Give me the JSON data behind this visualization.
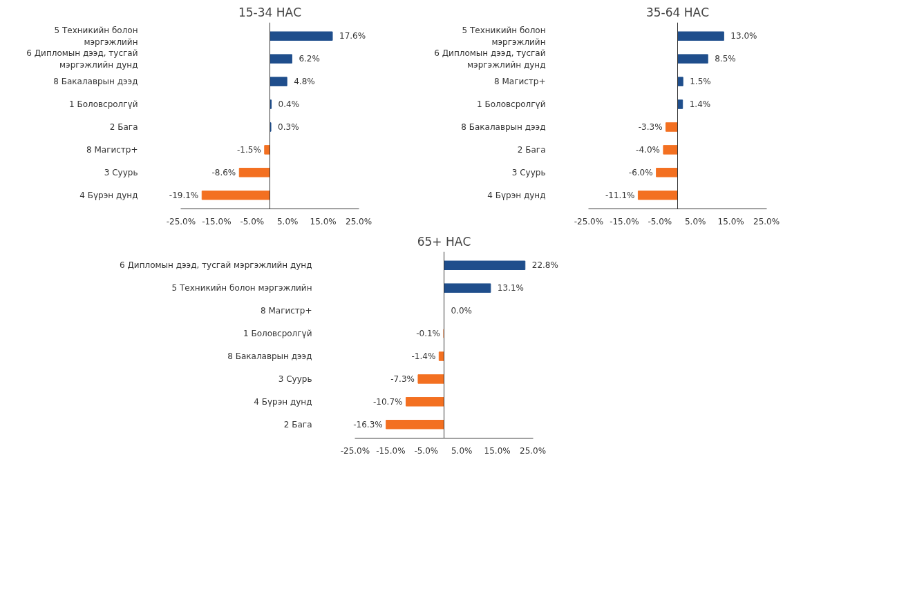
{
  "chart_data": [
    {
      "type": "bar",
      "orientation": "horizontal",
      "title": "15-34 НАС",
      "categories": [
        "5 Техникийн болон мэргэжлийн",
        "6 Дипломын дээд, тусгай мэргэжлийн дунд",
        "8 Бакалаврын дээд",
        "1 Боловсролгүй",
        "2 Бага",
        "8 Магистр+",
        "3 Суурь",
        "4 Бүрэн дунд"
      ],
      "values": [
        17.6,
        6.2,
        4.8,
        0.4,
        0.3,
        -1.5,
        -8.6,
        -19.1
      ],
      "colors": [
        "#1f4e8c",
        "#1f4e8c",
        "#1f4e8c",
        "#1f4e8c",
        "#1f4e8c",
        "#f37021",
        "#f37021",
        "#f37021"
      ],
      "value_labels": [
        "17.6%",
        "6.2%",
        "4.8%",
        "0.4%",
        "0.3%",
        "-1.5%",
        "-8.6%",
        "-19.1%"
      ],
      "xlim": [
        -25,
        25
      ],
      "xticks": [
        {
          "value": -25,
          "label": "-25.0%"
        },
        {
          "value": -15,
          "label": "-15.0%"
        },
        {
          "value": -5,
          "label": "-5.0%"
        },
        {
          "value": 5,
          "label": "5.0%"
        },
        {
          "value": 15,
          "label": "15.0%"
        },
        {
          "value": 25,
          "label": "25.0%"
        }
      ],
      "grid": false
    },
    {
      "type": "bar",
      "orientation": "horizontal",
      "title": "35-64 НАС",
      "categories": [
        "5 Техникийн болон мэргэжлийн",
        "6 Дипломын дээд, тусгай мэргэжлийн дунд",
        "8 Магистр+",
        "1 Боловсролгүй",
        "8 Бакалаврын дээд",
        "2 Бага",
        "3 Суурь",
        "4 Бүрэн дунд"
      ],
      "values": [
        13.0,
        8.5,
        1.5,
        1.4,
        -3.3,
        -4.0,
        -6.0,
        -11.1
      ],
      "colors": [
        "#1f4e8c",
        "#1f4e8c",
        "#1f4e8c",
        "#1f4e8c",
        "#f37021",
        "#f37021",
        "#f37021",
        "#f37021"
      ],
      "value_labels": [
        "13.0%",
        "8.5%",
        "1.5%",
        "1.4%",
        "-3.3%",
        "-4.0%",
        "-6.0%",
        "-11.1%"
      ],
      "xlim": [
        -25,
        25
      ],
      "xticks": [
        {
          "value": -25,
          "label": "-25.0%"
        },
        {
          "value": -15,
          "label": "-15.0%"
        },
        {
          "value": -5,
          "label": "-5.0%"
        },
        {
          "value": 5,
          "label": "5.0%"
        },
        {
          "value": 15,
          "label": "15.0%"
        },
        {
          "value": 25,
          "label": "25.0%"
        }
      ],
      "grid": false
    },
    {
      "type": "bar",
      "orientation": "horizontal",
      "title": "65+ НАС",
      "categories": [
        "6 Дипломын дээд, тусгай мэргэжлийн дунд",
        "5 Техникийн болон мэргэжлийн",
        "8 Магистр+",
        "1 Боловсролгүй",
        "8 Бакалаврын дээд",
        "3 Суурь",
        "4 Бүрэн дунд",
        "2 Бага"
      ],
      "values": [
        22.8,
        13.1,
        0.0,
        -0.1,
        -1.4,
        -7.3,
        -10.7,
        -16.3
      ],
      "colors": [
        "#1f4e8c",
        "#1f4e8c",
        "#1f4e8c",
        "#f37021",
        "#f37021",
        "#f37021",
        "#f37021",
        "#f37021"
      ],
      "value_labels": [
        "22.8%",
        "13.1%",
        "0.0%",
        "-0.1%",
        "-1.4%",
        "-7.3%",
        "-10.7%",
        "-16.3%"
      ],
      "xlim": [
        -25,
        25
      ],
      "xticks": [
        {
          "value": -25,
          "label": "-25.0%"
        },
        {
          "value": -15,
          "label": "-15.0%"
        },
        {
          "value": -5,
          "label": "-5.0%"
        },
        {
          "value": 5,
          "label": "5.0%"
        },
        {
          "value": 15,
          "label": "15.0%"
        },
        {
          "value": 25,
          "label": "25.0%"
        }
      ],
      "grid": false
    }
  ]
}
